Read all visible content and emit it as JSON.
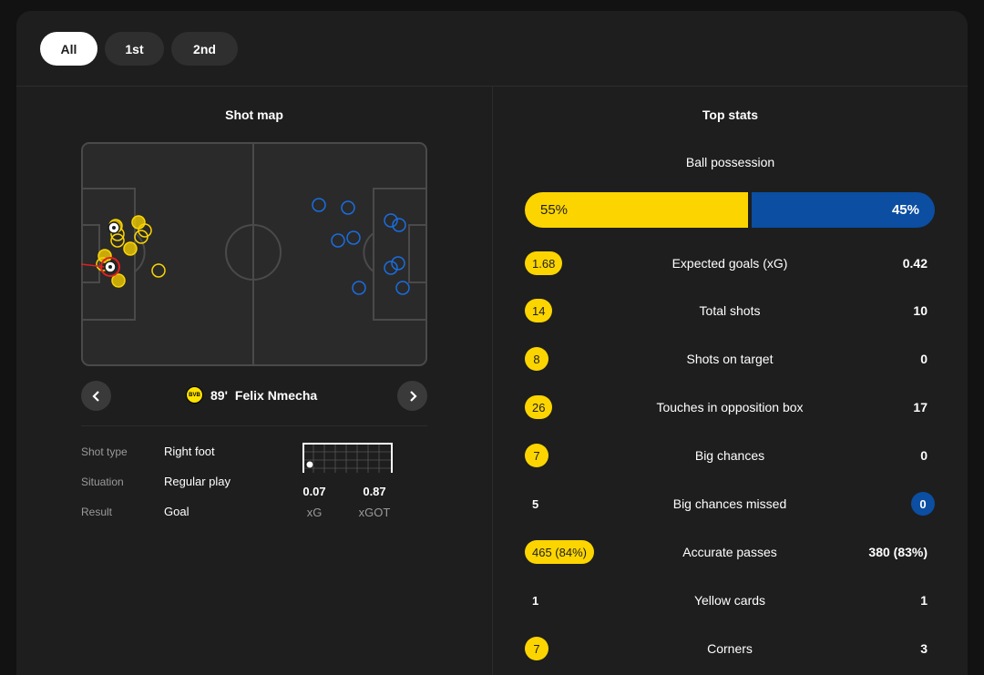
{
  "tabs": [
    {
      "label": "All",
      "active": true
    },
    {
      "label": "1st",
      "active": false
    },
    {
      "label": "2nd",
      "active": false
    }
  ],
  "shot_map": {
    "title": "Shot map",
    "selected_shot": {
      "minute": "89'",
      "player": "Felix Nmecha",
      "labels": {
        "type": "Shot type",
        "situation": "Situation",
        "result": "Result"
      },
      "type": "Right foot",
      "situation": "Regular play",
      "result": "Goal",
      "xg": "0.07",
      "xg_label": "xG",
      "xgot": "0.87",
      "xgot_label": "xGOT"
    }
  },
  "top_stats": {
    "title": "Top stats",
    "possession": {
      "label": "Ball possession",
      "home": "55%",
      "away": "45%",
      "home_value": 55,
      "away_value": 45
    },
    "rows": [
      {
        "label": "Expected goals (xG)",
        "home": "1.68",
        "away": "0.42",
        "highlight": "home"
      },
      {
        "label": "Total shots",
        "home": "14",
        "away": "10",
        "highlight": "home"
      },
      {
        "label": "Shots on target",
        "home": "8",
        "away": "0",
        "highlight": "home"
      },
      {
        "label": "Touches in opposition box",
        "home": "26",
        "away": "17",
        "highlight": "home"
      },
      {
        "label": "Big chances",
        "home": "7",
        "away": "0",
        "highlight": "home"
      },
      {
        "label": "Big chances missed",
        "home": "5",
        "away": "0",
        "highlight": "away"
      },
      {
        "label": "Accurate passes",
        "home": "465 (84%)",
        "away": "380 (83%)",
        "highlight": "home"
      },
      {
        "label": "Yellow cards",
        "home": "1",
        "away": "1",
        "highlight": "none"
      },
      {
        "label": "Corners",
        "home": "7",
        "away": "3",
        "highlight": "home"
      }
    ]
  },
  "colors": {
    "home": "#fcd500",
    "away": "#0b4ea2",
    "background": "#1e1e1e"
  }
}
